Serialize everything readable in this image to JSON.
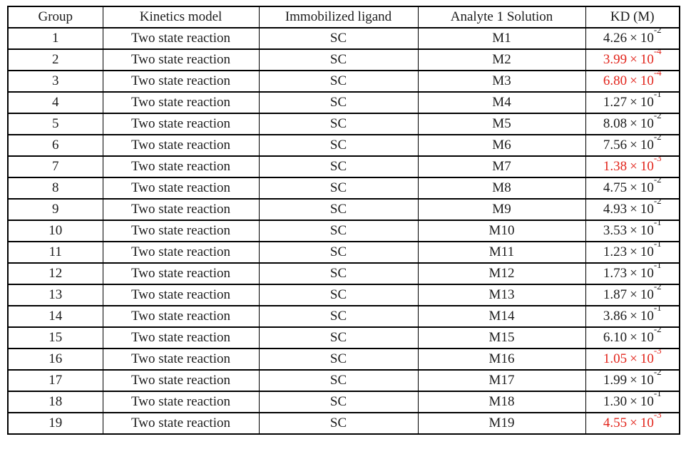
{
  "colors": {
    "background": "#ffffff",
    "border": "#000000",
    "text": "#1c1c1c",
    "highlight_red": "#e2241b"
  },
  "table": {
    "columns": [
      "Group",
      "Kinetics model",
      "Immobilized ligand",
      "Analyte 1 Solution",
      "KD (M)"
    ],
    "times_symbol": "×",
    "kd_base": "10",
    "rows": [
      {
        "group": "1",
        "model": "Two state reaction",
        "ligand": "SC",
        "analyte": "M1",
        "kd_mantissa": "4.26",
        "kd_exponent": "-2",
        "highlight": false
      },
      {
        "group": "2",
        "model": "Two state reaction",
        "ligand": "SC",
        "analyte": "M2",
        "kd_mantissa": "3.99",
        "kd_exponent": "-4",
        "highlight": true
      },
      {
        "group": "3",
        "model": "Two state reaction",
        "ligand": "SC",
        "analyte": "M3",
        "kd_mantissa": "6.80",
        "kd_exponent": "-4",
        "highlight": true
      },
      {
        "group": "4",
        "model": "Two state reaction",
        "ligand": "SC",
        "analyte": "M4",
        "kd_mantissa": "1.27",
        "kd_exponent": "-1",
        "highlight": false
      },
      {
        "group": "5",
        "model": "Two state reaction",
        "ligand": "SC",
        "analyte": "M5",
        "kd_mantissa": "8.08",
        "kd_exponent": "-2",
        "highlight": false
      },
      {
        "group": "6",
        "model": "Two state reaction",
        "ligand": "SC",
        "analyte": "M6",
        "kd_mantissa": "7.56",
        "kd_exponent": "-2",
        "highlight": false
      },
      {
        "group": "7",
        "model": "Two state reaction",
        "ligand": "SC",
        "analyte": "M7",
        "kd_mantissa": "1.38",
        "kd_exponent": "-3",
        "highlight": true
      },
      {
        "group": "8",
        "model": "Two state reaction",
        "ligand": "SC",
        "analyte": "M8",
        "kd_mantissa": "4.75",
        "kd_exponent": "-2",
        "highlight": false
      },
      {
        "group": "9",
        "model": "Two state reaction",
        "ligand": "SC",
        "analyte": "M9",
        "kd_mantissa": "4.93",
        "kd_exponent": "-2",
        "highlight": false
      },
      {
        "group": "10",
        "model": "Two state reaction",
        "ligand": "SC",
        "analyte": "M10",
        "kd_mantissa": "3.53",
        "kd_exponent": "-1",
        "highlight": false
      },
      {
        "group": "11",
        "model": "Two state reaction",
        "ligand": "SC",
        "analyte": "M11",
        "kd_mantissa": "1.23",
        "kd_exponent": "-1",
        "highlight": false
      },
      {
        "group": "12",
        "model": "Two state reaction",
        "ligand": "SC",
        "analyte": "M12",
        "kd_mantissa": "1.73",
        "kd_exponent": "-1",
        "highlight": false
      },
      {
        "group": "13",
        "model": "Two state reaction",
        "ligand": "SC",
        "analyte": "M13",
        "kd_mantissa": "1.87",
        "kd_exponent": "-2",
        "highlight": false
      },
      {
        "group": "14",
        "model": "Two state reaction",
        "ligand": "SC",
        "analyte": "M14",
        "kd_mantissa": "3.86",
        "kd_exponent": "-1",
        "highlight": false
      },
      {
        "group": "15",
        "model": "Two state reaction",
        "ligand": "SC",
        "analyte": "M15",
        "kd_mantissa": "6.10",
        "kd_exponent": "-2",
        "highlight": false
      },
      {
        "group": "16",
        "model": "Two state reaction",
        "ligand": "SC",
        "analyte": "M16",
        "kd_mantissa": "1.05",
        "kd_exponent": "-3",
        "highlight": true
      },
      {
        "group": "17",
        "model": "Two state reaction",
        "ligand": "SC",
        "analyte": "M17",
        "kd_mantissa": "1.99",
        "kd_exponent": "-2",
        "highlight": false
      },
      {
        "group": "18",
        "model": "Two state reaction",
        "ligand": "SC",
        "analyte": "M18",
        "kd_mantissa": "1.30",
        "kd_exponent": "-1",
        "highlight": false
      },
      {
        "group": "19",
        "model": "Two state reaction",
        "ligand": "SC",
        "analyte": "M19",
        "kd_mantissa": "4.55",
        "kd_exponent": "-3",
        "highlight": true
      }
    ]
  }
}
